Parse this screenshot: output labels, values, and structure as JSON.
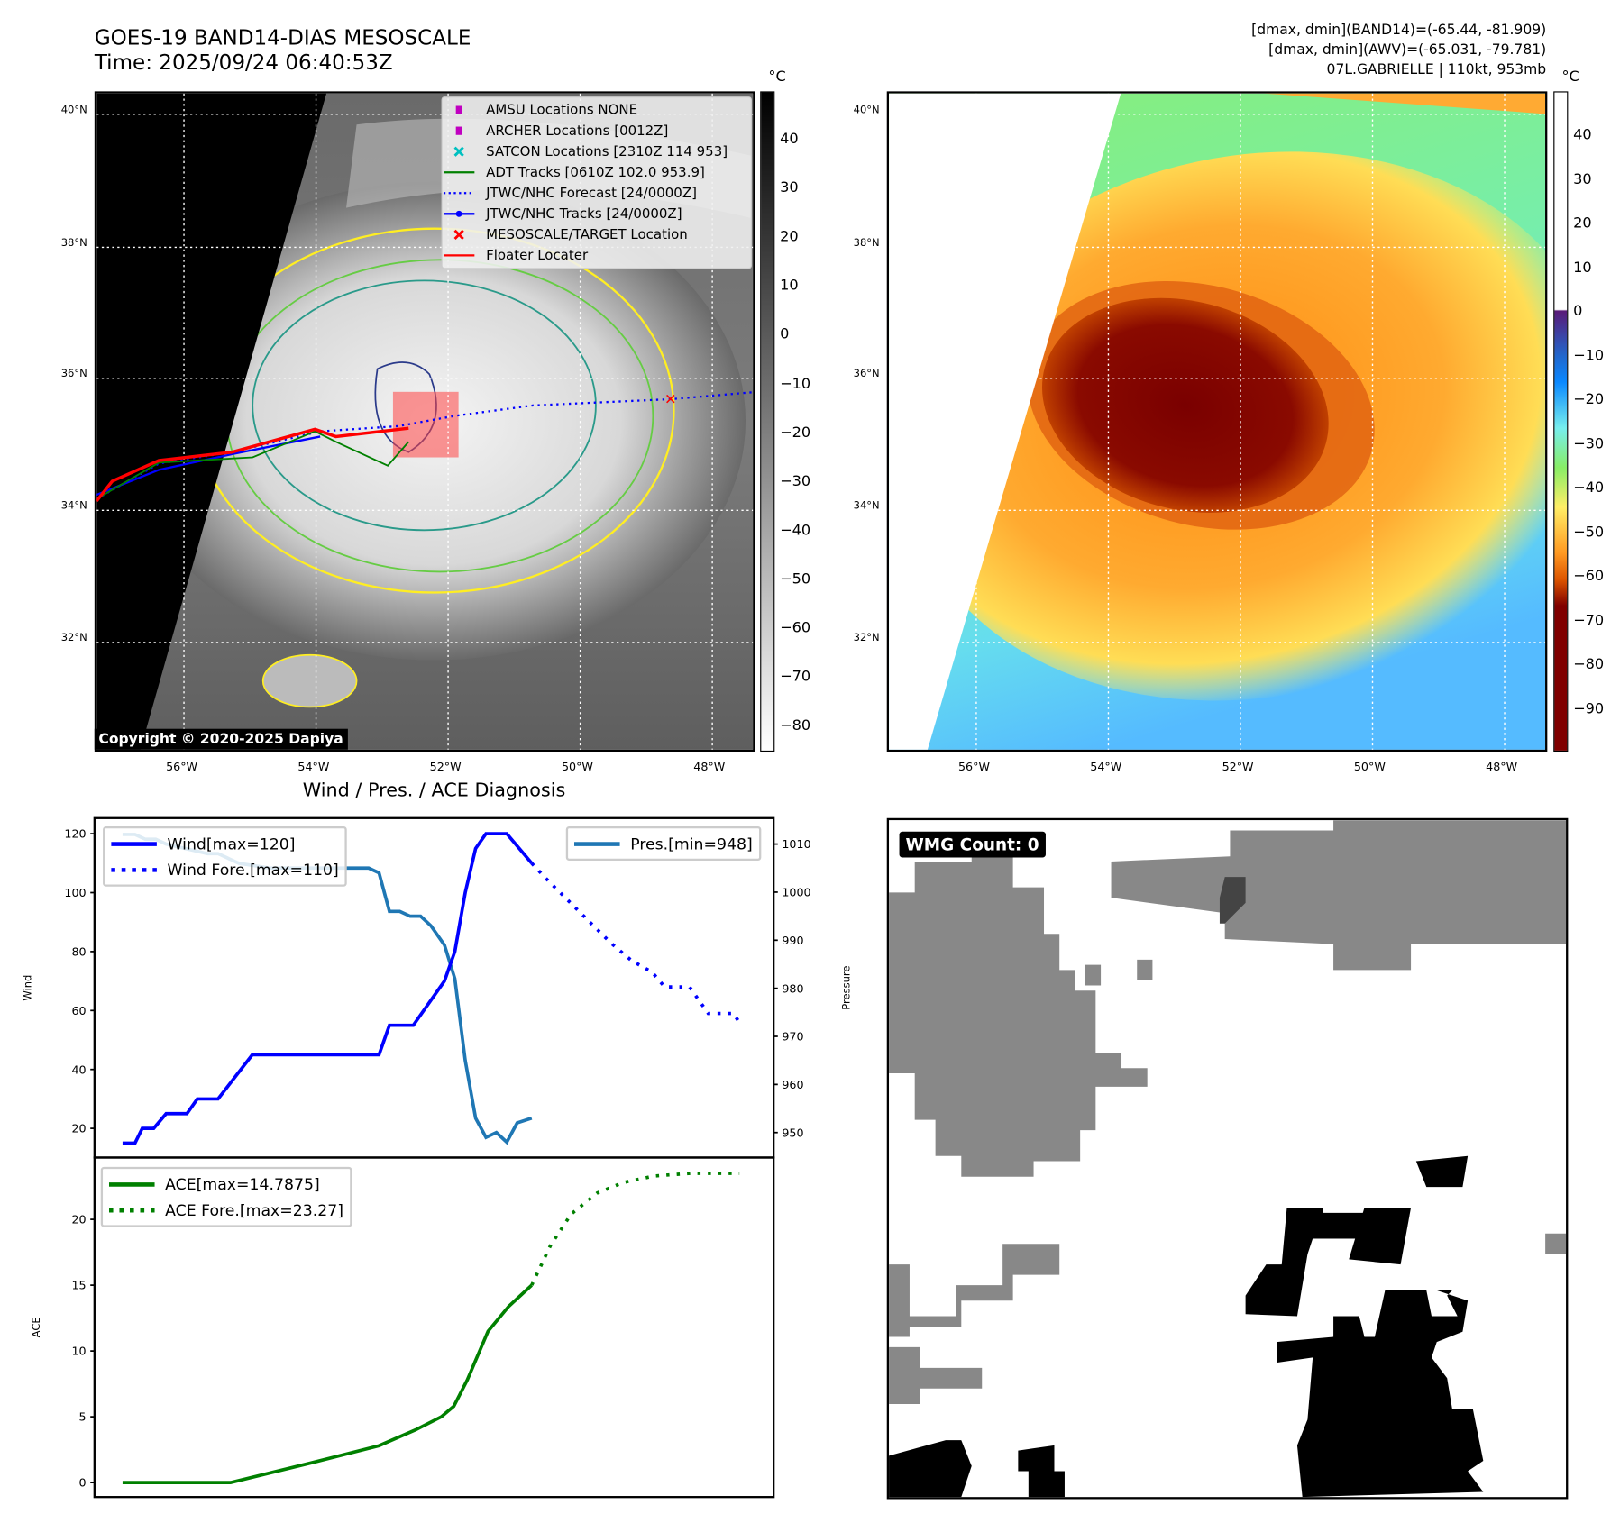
{
  "header": {
    "title_line1": "GOES-19 BAND14-DIAS MESOSCALE",
    "title_line2": "Time: 2025/09/24 06:40:53Z",
    "stats_line1": "[dmax, dmin](BAND14)=(-65.44, -81.909)",
    "stats_line2": "[dmax, dmin](AWV)=(-65.031, -79.781)",
    "stats_line3": "07L.GABRIELLE | 110kt, 953mb"
  },
  "maps": {
    "lat_labels": [
      "40°N",
      "38°N",
      "36°N",
      "34°N",
      "32°N"
    ],
    "lon_labels": [
      "56°W",
      "54°W",
      "52°W",
      "50°W",
      "48°W"
    ],
    "unit": "°C",
    "colorbar_gray_ticks": [
      "40",
      "30",
      "20",
      "10",
      "0",
      "−10",
      "−20",
      "−30",
      "−40",
      "−50",
      "−60",
      "−70",
      "−80"
    ],
    "colorbar_color_ticks": [
      "40",
      "30",
      "20",
      "10",
      "0",
      "−10",
      "−20",
      "−30",
      "−40",
      "−50",
      "−60",
      "−70",
      "−80",
      "−90"
    ],
    "copyright": "Copyright © 2020-2025 Dapiya",
    "legend": [
      {
        "label": "AMSU Locations NONE",
        "icon": "square-marker",
        "color": "#c000c0"
      },
      {
        "label": "ARCHER Locations [0012Z]",
        "icon": "square-marker",
        "color": "#c000c0"
      },
      {
        "label": "SATCON Locations [2310Z 114 953]",
        "icon": "x-marker",
        "color": "#00c0c0"
      },
      {
        "label": "ADT Tracks [0610Z 102.0 953.9]",
        "icon": "solid-line",
        "color": "#008000"
      },
      {
        "label": "JTWC/NHC Forecast [24/0000Z]",
        "icon": "dotted-line",
        "color": "#0000ff"
      },
      {
        "label": "JTWC/NHC Tracks [24/0000Z]",
        "icon": "line-dot",
        "color": "#0000ff"
      },
      {
        "label": "MESOSCALE/TARGET Location",
        "icon": "x-marker",
        "color": "#ff0000"
      },
      {
        "label": "Floater Locater",
        "icon": "solid-line",
        "color": "#ff0000"
      }
    ]
  },
  "wmg": {
    "label": "WMG Count: 0"
  },
  "chart_data": [
    {
      "type": "line",
      "title": "Wind / Pres. / ACE Diagnosis",
      "ylabel": "Wind",
      "ylabel_right": "Pressure",
      "xlim": [
        -2.7,
        62.7
      ],
      "ylim": [
        10.1,
        125.3
      ],
      "ylim_right": [
        944.8,
        1015.4
      ],
      "yticks": [
        20,
        40,
        60,
        80,
        100,
        120
      ],
      "yticks_right": [
        950,
        960,
        970,
        980,
        990,
        1000,
        1010
      ],
      "legend_left": [
        "Wind[max=120]",
        "Wind Fore.[max=110]"
      ],
      "legend_right": [
        "Pres.[min=948]"
      ],
      "colors": {
        "wind": "#0000ff",
        "pressure": "#1f77b4"
      },
      "series": [
        {
          "name": "Wind[max=120]",
          "axis": "left",
          "style": "solid",
          "points": [
            [
              0,
              15
            ],
            [
              1.2,
              15
            ],
            [
              1.9,
              20
            ],
            [
              3,
              20
            ],
            [
              4.2,
              25
            ],
            [
              6.2,
              25
            ],
            [
              7.2,
              30
            ],
            [
              9.2,
              30
            ],
            [
              12.5,
              45
            ],
            [
              24.7,
              45
            ],
            [
              25.7,
              55
            ],
            [
              28,
              55
            ],
            [
              31,
              70
            ],
            [
              32,
              80
            ],
            [
              33,
              100
            ],
            [
              34,
              115
            ],
            [
              35,
              120
            ],
            [
              37,
              120
            ],
            [
              39.4,
              110
            ]
          ]
        },
        {
          "name": "Wind Fore.[max=110]",
          "axis": "left",
          "style": "dotted",
          "points": [
            [
              39.4,
              110
            ],
            [
              41,
              104
            ],
            [
              43,
              97
            ],
            [
              45,
              90
            ],
            [
              47,
              83
            ],
            [
              49,
              77
            ],
            [
              51,
              73
            ],
            [
              52.2,
              68
            ],
            [
              54.6,
              68
            ],
            [
              56.4,
              59
            ],
            [
              58.8,
              59
            ],
            [
              59.6,
              55
            ]
          ]
        },
        {
          "name": "Pres.[min=948]",
          "axis": "right",
          "style": "solid",
          "points": [
            [
              0,
              1012
            ],
            [
              1.2,
              1012
            ],
            [
              2.2,
              1011
            ],
            [
              3.2,
              1011
            ],
            [
              4.2,
              1010
            ],
            [
              6.2,
              1009
            ],
            [
              8.2,
              1008
            ],
            [
              9.2,
              1008
            ],
            [
              11.2,
              1006
            ],
            [
              14.2,
              1005
            ],
            [
              23.7,
              1005
            ],
            [
              24.7,
              1004
            ],
            [
              25.7,
              996
            ],
            [
              26.7,
              996
            ],
            [
              27.7,
              995
            ],
            [
              28.7,
              995
            ],
            [
              29.7,
              993
            ],
            [
              31,
              989
            ],
            [
              32,
              982
            ],
            [
              33,
              965
            ],
            [
              34,
              953
            ],
            [
              35,
              949
            ],
            [
              36,
              950
            ],
            [
              37,
              948
            ],
            [
              38,
              952
            ],
            [
              39.4,
              953
            ]
          ]
        }
      ]
    },
    {
      "type": "line",
      "ylabel": "ACE",
      "xlim": [
        -2.7,
        62.7
      ],
      "ylim": [
        -1.1,
        24.7
      ],
      "yticks": [
        0,
        5,
        10,
        15,
        20
      ],
      "legend": [
        "ACE[max=14.7875]",
        "ACE Fore.[max=23.27]"
      ],
      "colors": {
        "ace": "#008000"
      },
      "series": [
        {
          "name": "ACE[max=14.7875]",
          "style": "solid",
          "points": [
            [
              0,
              0
            ],
            [
              10.4,
              0
            ],
            [
              18.2,
              1.5
            ],
            [
              24.7,
              2.8
            ],
            [
              28.2,
              4
            ],
            [
              30.7,
              5
            ],
            [
              31.9,
              5.8
            ],
            [
              33.2,
              7.8
            ],
            [
              35.2,
              11.5
            ],
            [
              37.2,
              13.4
            ],
            [
              39.4,
              15
            ]
          ]
        },
        {
          "name": "ACE Fore.[max=23.27]",
          "style": "dotted",
          "points": [
            [
              39.4,
              15
            ],
            [
              41.2,
              18
            ],
            [
              43.2,
              20.4
            ],
            [
              45.7,
              22
            ],
            [
              48.2,
              22.8
            ],
            [
              51.2,
              23.3
            ],
            [
              54.7,
              23.5
            ],
            [
              59.4,
              23.5
            ]
          ]
        }
      ]
    }
  ]
}
